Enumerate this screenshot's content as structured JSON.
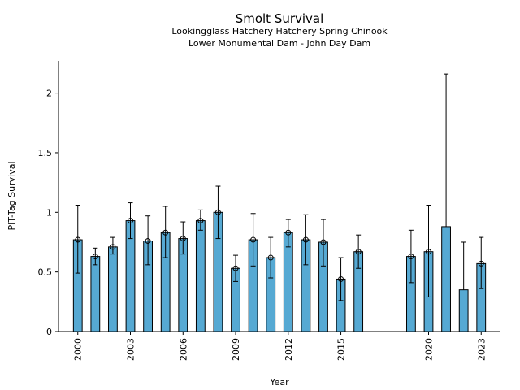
{
  "chart_data": {
    "type": "bar",
    "title": "Smolt Survival",
    "subtitle_lines": [
      "Lookingglass Hatchery Hatchery Spring Chinook",
      "Lower Monumental Dam - John Day Dam"
    ],
    "xlabel": "Year",
    "ylabel": "PIT-Tag Survival",
    "ylim": [
      0,
      2.27
    ],
    "xlim": [
      1998.9,
      2024.1
    ],
    "yticks": [
      0,
      0.5,
      1,
      1.5,
      2
    ],
    "ytick_labels": [
      "0",
      "0.5",
      "1",
      "1.5",
      "2"
    ],
    "xticks": [
      2000,
      2003,
      2006,
      2009,
      2012,
      2015,
      2020,
      2023
    ],
    "xtick_labels": [
      "2000",
      "2003",
      "2006",
      "2009",
      "2012",
      "2015",
      "2020",
      "2023"
    ],
    "bar_color": "#56a9d3",
    "bar_width_years": 0.5,
    "grid": false,
    "points": [
      {
        "year": 2000,
        "value": 0.77,
        "lower": 0.49,
        "upper": 1.06,
        "marker": true
      },
      {
        "year": 2001,
        "value": 0.63,
        "lower": 0.56,
        "upper": 0.7,
        "marker": true
      },
      {
        "year": 2002,
        "value": 0.71,
        "lower": 0.65,
        "upper": 0.79,
        "marker": true
      },
      {
        "year": 2003,
        "value": 0.93,
        "lower": 0.78,
        "upper": 1.08,
        "marker": true
      },
      {
        "year": 2004,
        "value": 0.76,
        "lower": 0.56,
        "upper": 0.97,
        "marker": true
      },
      {
        "year": 2005,
        "value": 0.83,
        "lower": 0.62,
        "upper": 1.05,
        "marker": true
      },
      {
        "year": 2006,
        "value": 0.78,
        "lower": 0.65,
        "upper": 0.92,
        "marker": true
      },
      {
        "year": 2007,
        "value": 0.93,
        "lower": 0.85,
        "upper": 1.02,
        "marker": true
      },
      {
        "year": 2008,
        "value": 1.0,
        "lower": 0.78,
        "upper": 1.22,
        "marker": true
      },
      {
        "year": 2009,
        "value": 0.53,
        "lower": 0.42,
        "upper": 0.64,
        "marker": true
      },
      {
        "year": 2010,
        "value": 0.77,
        "lower": 0.55,
        "upper": 0.99,
        "marker": true
      },
      {
        "year": 2011,
        "value": 0.62,
        "lower": 0.45,
        "upper": 0.79,
        "marker": true
      },
      {
        "year": 2012,
        "value": 0.83,
        "lower": 0.71,
        "upper": 0.94,
        "marker": true
      },
      {
        "year": 2013,
        "value": 0.77,
        "lower": 0.56,
        "upper": 0.98,
        "marker": true
      },
      {
        "year": 2014,
        "value": 0.75,
        "lower": 0.55,
        "upper": 0.94,
        "marker": true
      },
      {
        "year": 2015,
        "value": 0.44,
        "lower": 0.26,
        "upper": 0.62,
        "marker": true
      },
      {
        "year": 2016,
        "value": 0.67,
        "lower": 0.53,
        "upper": 0.81,
        "marker": true
      },
      {
        "year": 2019,
        "value": 0.63,
        "lower": 0.41,
        "upper": 0.85,
        "marker": true
      },
      {
        "year": 2020,
        "value": 0.67,
        "lower": 0.29,
        "upper": 1.06,
        "marker": true
      },
      {
        "year": 2021,
        "value": 0.88,
        "lower": null,
        "upper": 2.16,
        "marker": false
      },
      {
        "year": 2022,
        "value": 0.35,
        "lower": null,
        "upper": 0.75,
        "marker": false
      },
      {
        "year": 2023,
        "value": 0.57,
        "lower": 0.36,
        "upper": 0.79,
        "marker": true
      }
    ]
  }
}
